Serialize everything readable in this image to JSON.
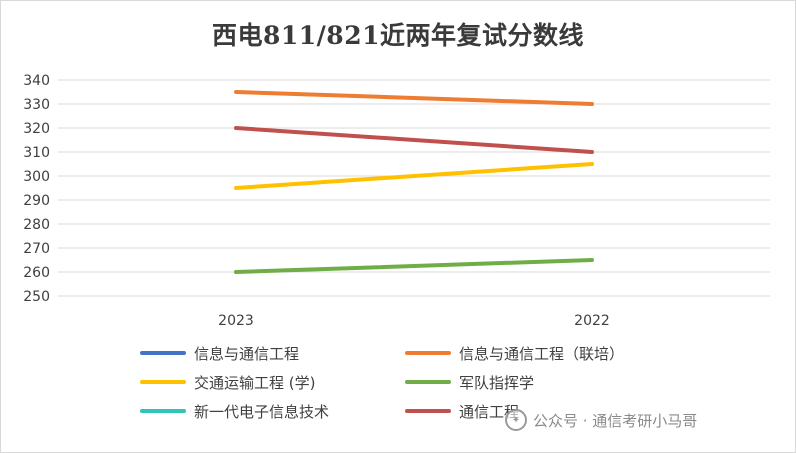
{
  "chart_data": {
    "type": "line",
    "title": "西电811/821近两年复试分数线",
    "categories": [
      "2023",
      "2022"
    ],
    "ylim": [
      250,
      340
    ],
    "yticks": [
      250,
      260,
      270,
      280,
      290,
      300,
      310,
      320,
      330,
      340
    ],
    "grid": true,
    "legend_position": "bottom",
    "series": [
      {
        "name": "信息与通信工程",
        "color": "#4472c4",
        "values": [
          null,
          null
        ]
      },
      {
        "name": "信息与通信工程（联培）",
        "color": "#ed7d31",
        "values": [
          335,
          330
        ]
      },
      {
        "name": "交通运输工程 (学)",
        "color": "#ffc000",
        "values": [
          295,
          305
        ]
      },
      {
        "name": "军队指挥学",
        "color": "#70ad47",
        "values": [
          260,
          265
        ]
      },
      {
        "name": "新一代电子信息技术",
        "color": "#2ec4b6",
        "values": [
          null,
          null
        ]
      },
      {
        "name": "通信工程",
        "color": "#c0504d",
        "values": [
          320,
          310
        ]
      }
    ]
  },
  "watermark": {
    "text": "公众号 · 通信考研小马哥",
    "icon": "wechat-icon"
  }
}
